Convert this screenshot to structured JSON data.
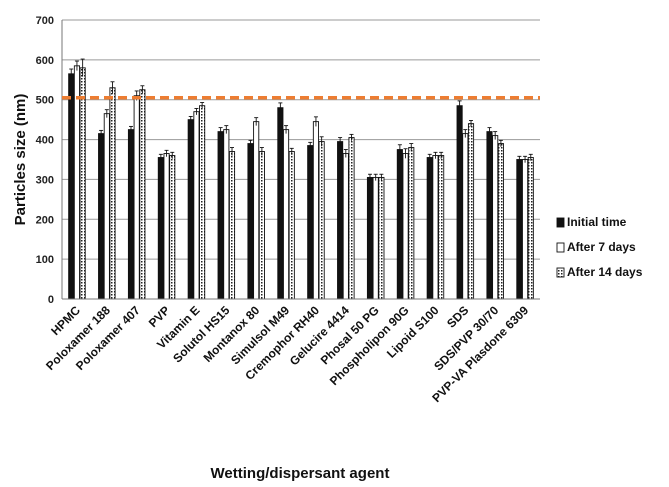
{
  "chart_data": {
    "type": "bar",
    "title": "",
    "xlabel": "Wetting/dispersant agent",
    "ylabel": "Particles size (nm)",
    "ylim": [
      0,
      700
    ],
    "yticks": [
      0,
      100,
      200,
      300,
      400,
      500,
      600,
      700
    ],
    "grid": "horizontal",
    "legend_position": "right",
    "reference_line": {
      "value": 505,
      "color": "#ed7d31",
      "style": "dashed"
    },
    "categories": [
      "HPMC",
      "Poloxamer 188",
      "Poloxamer 407",
      "PVP",
      "Vitamin E",
      "Solutol HS15",
      "Montanox 80",
      "Simulsol M49",
      "Cremophor RH40",
      "Gelucire 4414",
      "Phosal 50 PG",
      "Phospholipon 90G",
      "Lipoid S100",
      "SDS",
      "SDS/PVP 30/70",
      "PVP-VA Plasdone 6309"
    ],
    "series": [
      {
        "name": "Initial time",
        "pattern": "solid",
        "values": [
          565,
          415,
          425,
          355,
          450,
          420,
          390,
          480,
          385,
          395,
          305,
          375,
          355,
          485,
          420,
          350
        ],
        "errors": [
          12,
          8,
          8,
          8,
          8,
          10,
          8,
          12,
          8,
          10,
          8,
          12,
          8,
          12,
          10,
          8
        ]
      },
      {
        "name": "After 7 days",
        "pattern": "hollow",
        "values": [
          585,
          465,
          510,
          365,
          470,
          425,
          445,
          425,
          445,
          365,
          305,
          365,
          360,
          415,
          410,
          350
        ],
        "errors": [
          12,
          10,
          12,
          8,
          8,
          10,
          10,
          10,
          12,
          10,
          8,
          12,
          8,
          10,
          10,
          8
        ]
      },
      {
        "name": "After 14 days",
        "pattern": "dotted",
        "values": [
          580,
          530,
          525,
          360,
          485,
          370,
          370,
          370,
          395,
          405,
          305,
          380,
          360,
          440,
          390,
          355
        ],
        "errors": [
          22,
          15,
          10,
          8,
          8,
          10,
          10,
          8,
          12,
          8,
          8,
          10,
          8,
          8,
          8,
          8
        ]
      }
    ]
  }
}
